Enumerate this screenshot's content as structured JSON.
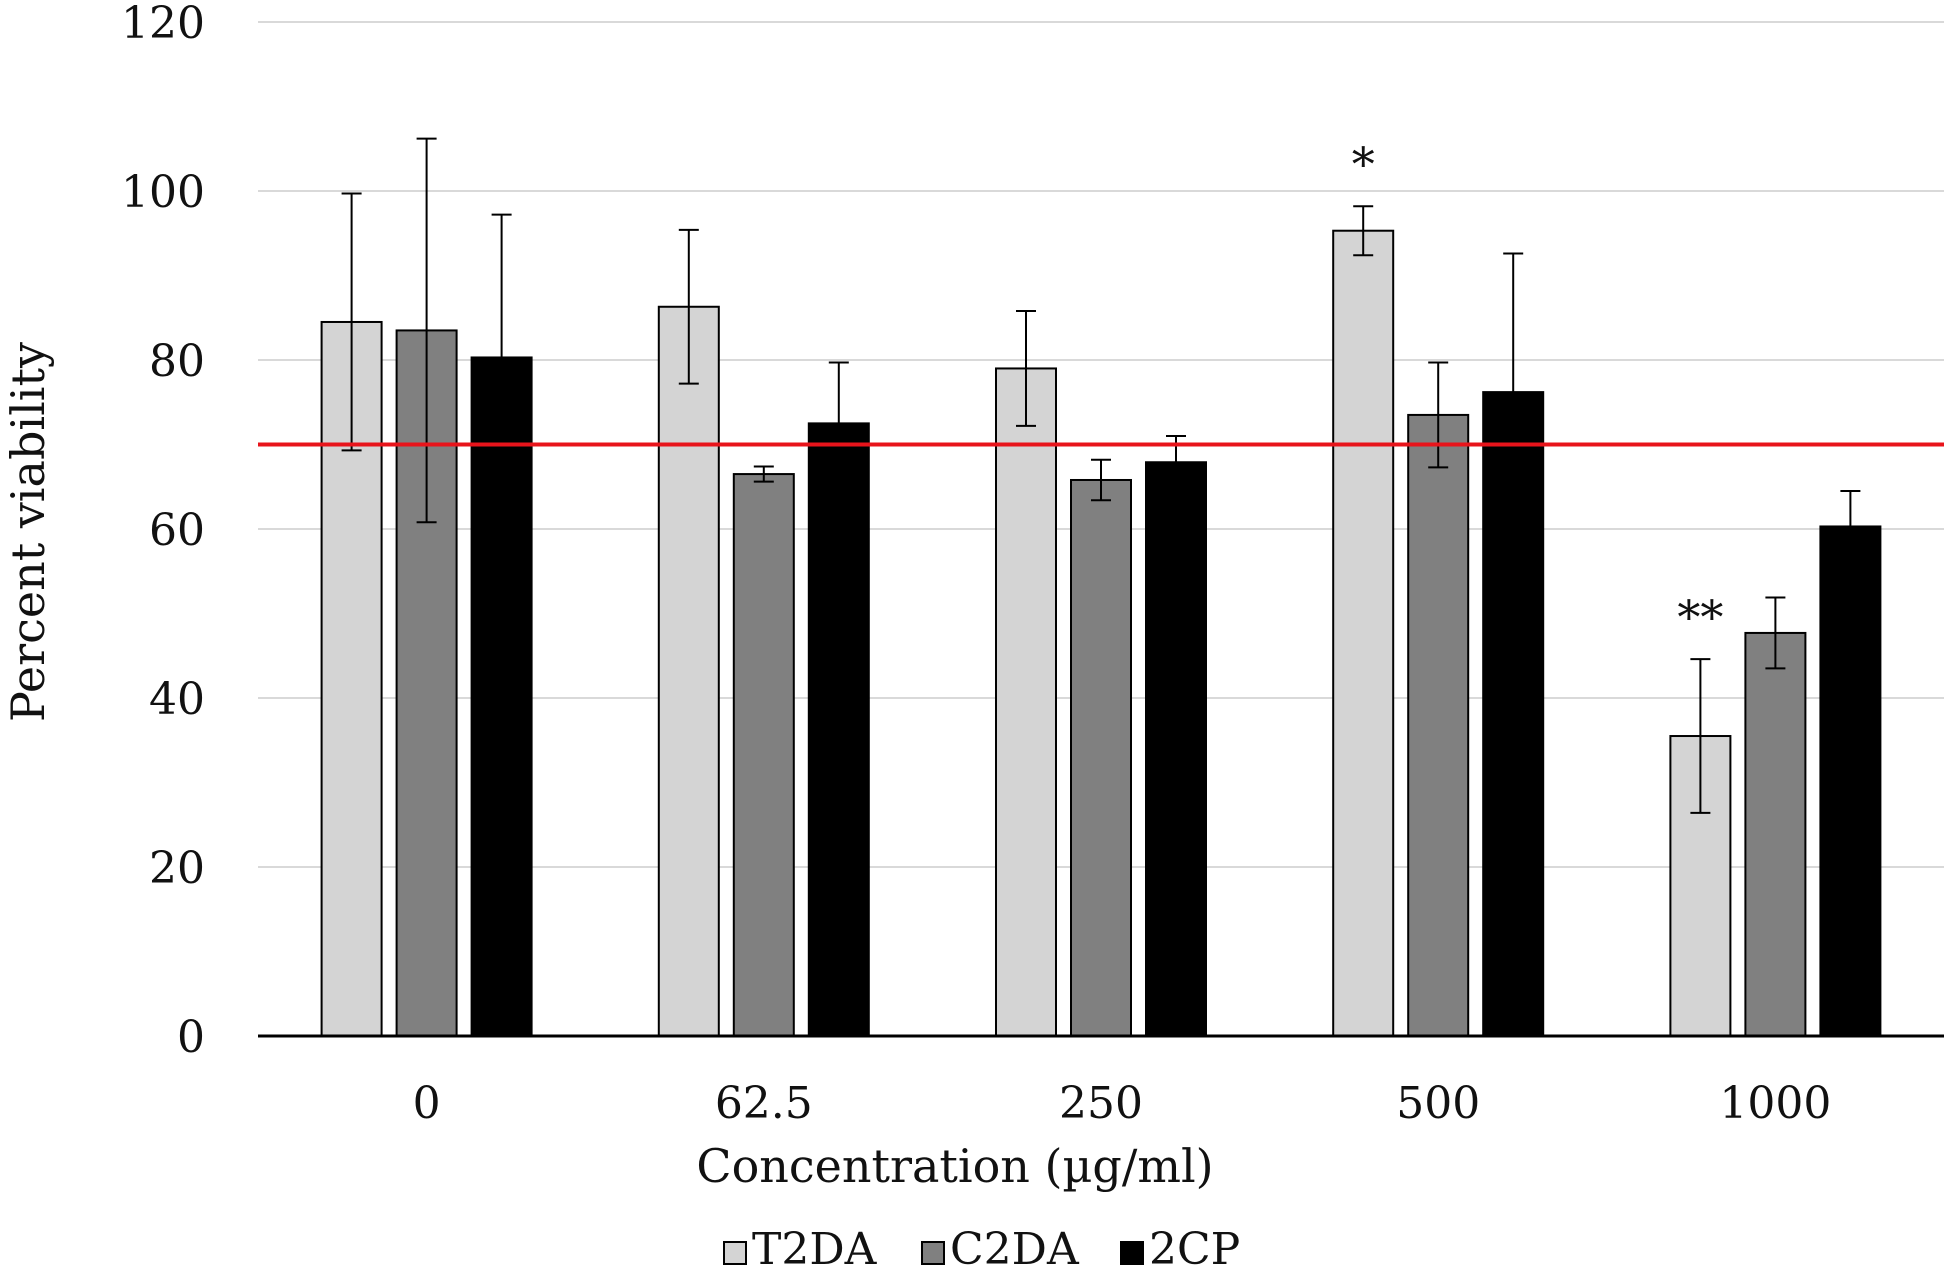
{
  "chart_data": {
    "type": "bar",
    "title": "",
    "xlabel": "Concentration (µg/ml)",
    "ylabel": "Percent viability",
    "categories": [
      "0",
      "62.5",
      "250",
      "500",
      "1000"
    ],
    "ylim": [
      0,
      120
    ],
    "yticks": [
      "0",
      "20",
      "40",
      "60",
      "80",
      "100",
      "120"
    ],
    "grid": true,
    "series": [
      {
        "name": "T2DA",
        "color": "#d4d4d4",
        "values": [
          84.5,
          86.3,
          79.0,
          95.3,
          35.5
        ],
        "errors": [
          15.2,
          9.1,
          6.8,
          2.9,
          9.1
        ]
      },
      {
        "name": "C2DA",
        "color": "#808080",
        "values": [
          83.5,
          66.5,
          65.8,
          73.5,
          47.7
        ],
        "errors": [
          22.7,
          0.9,
          2.4,
          6.2,
          4.2
        ]
      },
      {
        "name": "2CP",
        "color": "#000000",
        "values": [
          80.3,
          72.5,
          67.9,
          76.2,
          60.3
        ],
        "errors": [
          16.9,
          7.2,
          3.1,
          16.4,
          4.2
        ]
      }
    ],
    "reference_line": {
      "value": 70,
      "color": "#e8141b"
    },
    "annotations": [
      {
        "text": "*",
        "category": "500",
        "series": "T2DA"
      },
      {
        "text": "**",
        "category": "1000",
        "series": "T2DA"
      }
    ],
    "legend": {
      "position": "bottom",
      "items": [
        "T2DA",
        "C2DA",
        "2CP"
      ]
    }
  }
}
